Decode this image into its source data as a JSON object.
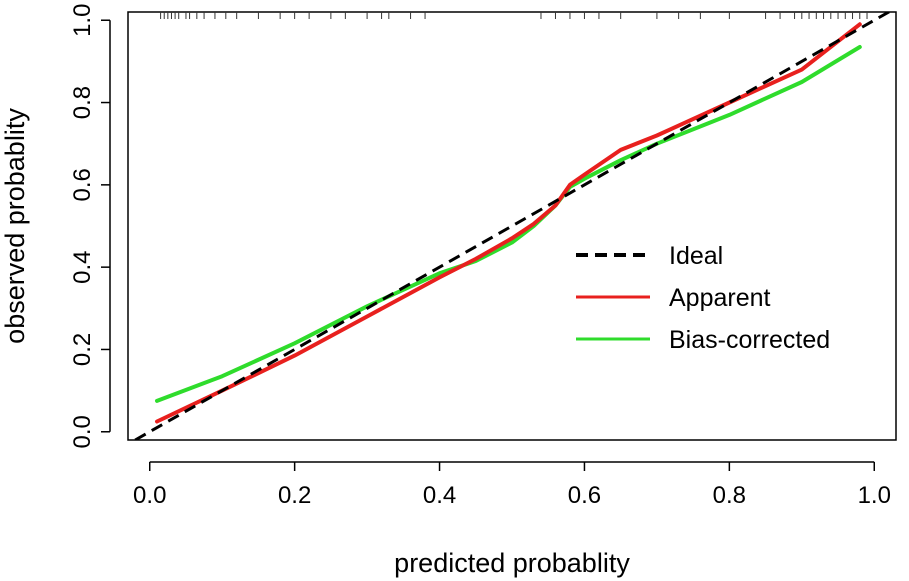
{
  "chart_data": {
    "type": "line",
    "title": "",
    "xlabel": "predicted probablity",
    "ylabel": "observed probablity",
    "xlim": [
      -0.03,
      1.03
    ],
    "ylim": [
      -0.02,
      1.02
    ],
    "x_ticks": [
      "0.0",
      "0.2",
      "0.4",
      "0.6",
      "0.8",
      "1.0"
    ],
    "y_ticks": [
      "0.0",
      "0.2",
      "0.4",
      "0.6",
      "0.8",
      "1.0"
    ],
    "grid": false,
    "legend_position": "right-center",
    "series": [
      {
        "name": "Ideal",
        "color": "#000000",
        "style": "dashed",
        "x": [
          -0.02,
          1.03
        ],
        "y": [
          -0.02,
          1.03
        ]
      },
      {
        "name": "Apparent",
        "color": "#e8201e",
        "style": "solid",
        "x": [
          0.01,
          0.1,
          0.2,
          0.3,
          0.4,
          0.45,
          0.5,
          0.53,
          0.56,
          0.58,
          0.6,
          0.65,
          0.7,
          0.8,
          0.9,
          0.98
        ],
        "y": [
          0.025,
          0.1,
          0.185,
          0.28,
          0.375,
          0.42,
          0.47,
          0.505,
          0.55,
          0.6,
          0.625,
          0.685,
          0.72,
          0.8,
          0.88,
          0.99
        ]
      },
      {
        "name": "Bias-corrected",
        "color": "#2fdc2c",
        "style": "solid",
        "x": [
          0.01,
          0.1,
          0.2,
          0.3,
          0.4,
          0.45,
          0.5,
          0.53,
          0.56,
          0.58,
          0.6,
          0.65,
          0.7,
          0.8,
          0.9,
          0.98
        ],
        "y": [
          0.075,
          0.135,
          0.215,
          0.305,
          0.385,
          0.415,
          0.46,
          0.5,
          0.55,
          0.595,
          0.615,
          0.66,
          0.7,
          0.77,
          0.85,
          0.935
        ]
      }
    ],
    "rug_x": [
      0.015,
      0.02,
      0.025,
      0.03,
      0.035,
      0.04,
      0.05,
      0.055,
      0.065,
      0.075,
      0.09,
      0.105,
      0.12,
      0.15,
      0.18,
      0.2,
      0.22,
      0.25,
      0.27,
      0.3,
      0.32,
      0.33,
      0.36,
      0.38,
      0.54,
      0.56,
      0.58,
      0.6,
      0.62,
      0.65,
      0.7,
      0.73,
      0.76,
      0.8,
      0.85,
      0.87,
      0.89,
      0.9,
      0.91,
      0.92,
      0.93,
      0.94,
      0.95,
      0.96,
      0.97,
      0.98,
      0.99
    ]
  }
}
